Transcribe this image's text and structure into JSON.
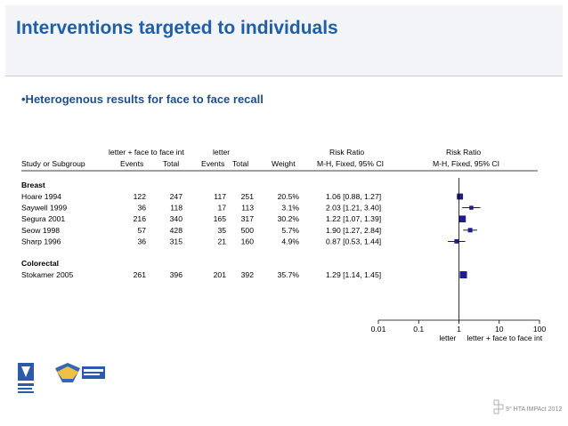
{
  "slide": {
    "title": "Interventions targeted to individuals",
    "bullet": "•Heterogenous results for face to face recall"
  },
  "headers": {
    "group1": "letter + face to face int",
    "group2": "letter",
    "risk_ratio_1": "Risk Ratio",
    "risk_ratio_2": "Risk Ratio",
    "study": "Study or Subgroup",
    "events1": "Events",
    "total1": "Total",
    "events2": "Events",
    "total2": "Total",
    "weight": "Weight",
    "method1": "M-H, Fixed, 95% CI",
    "method2": "M-H, Fixed, 95% CI"
  },
  "chart_data": {
    "type": "forest",
    "x_scale": "log",
    "xlim": [
      0.01,
      100
    ],
    "ticks": [
      "0.01",
      "0.1",
      "1",
      "10",
      "100"
    ],
    "tick_values": [
      0.01,
      0.1,
      1,
      10,
      100
    ],
    "favours_left": "letter",
    "favours_right": "letter + face to face int",
    "subgroups": [
      {
        "name": "Breast",
        "studies": [
          {
            "study": "Hoare 1994",
            "events1": "122",
            "total1": "247",
            "events2": "117",
            "total2": "251",
            "weight": "20.5%",
            "ci_text": "1.06 [0.88, 1.27]",
            "rr": 1.06,
            "lo": 0.88,
            "hi": 1.27
          },
          {
            "study": "Saywell 1999",
            "events1": "36",
            "total1": "118",
            "events2": "17",
            "total2": "113",
            "weight": "3.1%",
            "ci_text": "2.03 [1.21, 3.40]",
            "rr": 2.03,
            "lo": 1.21,
            "hi": 3.4
          },
          {
            "study": "Segura 2001",
            "events1": "216",
            "total1": "340",
            "events2": "165",
            "total2": "317",
            "weight": "30.2%",
            "ci_text": "1.22 [1.07, 1.39]",
            "rr": 1.22,
            "lo": 1.07,
            "hi": 1.39
          },
          {
            "study": "Seow 1998",
            "events1": "57",
            "total1": "428",
            "events2": "35",
            "total2": "500",
            "weight": "5.7%",
            "ci_text": "1.90 [1.27, 2.84]",
            "rr": 1.9,
            "lo": 1.27,
            "hi": 2.84
          },
          {
            "study": "Sharp 1996",
            "events1": "36",
            "total1": "315",
            "events2": "21",
            "total2": "160",
            "weight": "4.9%",
            "ci_text": "0.87 [0.53, 1.44]",
            "rr": 0.87,
            "lo": 0.53,
            "hi": 1.44
          }
        ]
      },
      {
        "name": "Colorectal",
        "studies": [
          {
            "study": "Stokamer 2005",
            "events1": "261",
            "total1": "396",
            "events2": "201",
            "total2": "392",
            "weight": "35.7%",
            "ci_text": "1.29 [1.14, 1.45]",
            "rr": 1.29,
            "lo": 1.14,
            "hi": 1.45
          }
        ]
      }
    ]
  },
  "colors": {
    "title": "#1f5fa8",
    "bullet": "#1f4f8a",
    "marker": "#1c1c8c"
  },
  "footer": {
    "logo_left_icon": "university-logo-icon",
    "logo_right_text": "9° HTA IMPAct 2012"
  }
}
